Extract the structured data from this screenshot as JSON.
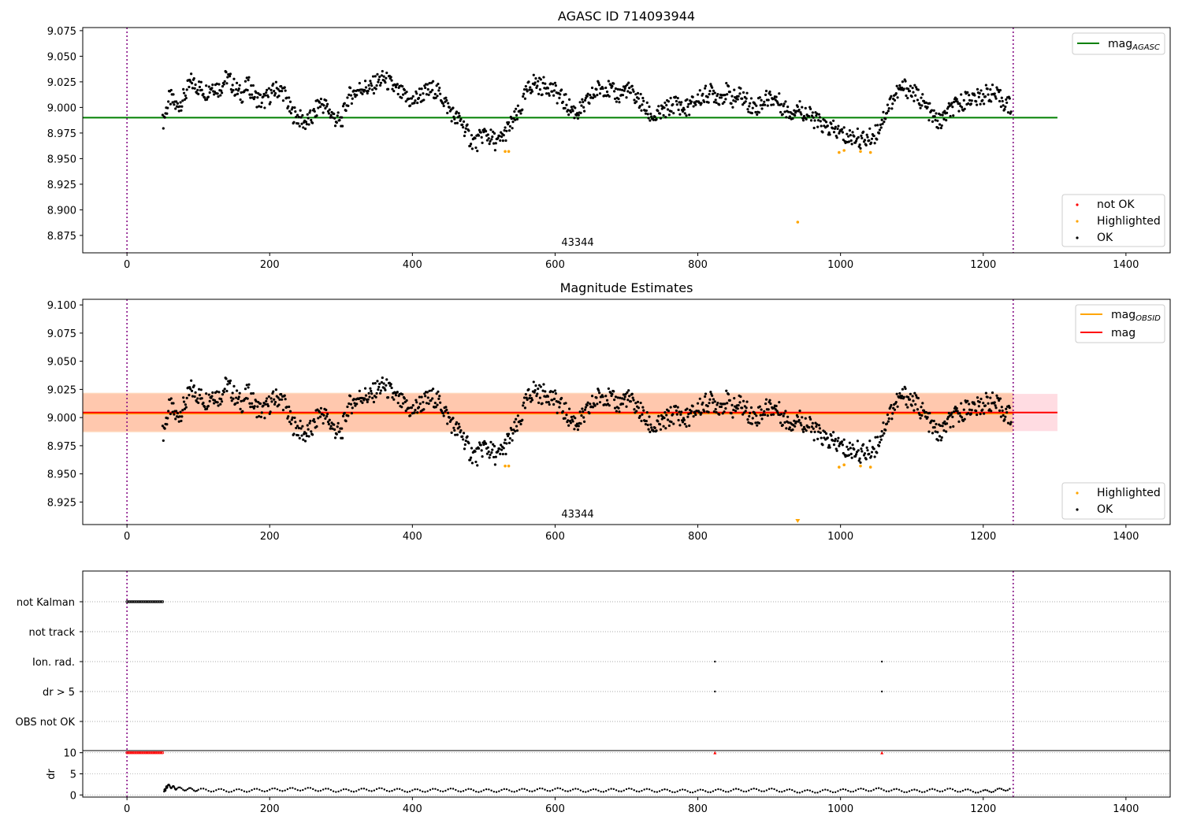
{
  "chart_data": [
    {
      "type": "scatter",
      "title": "AGASC ID 714093944",
      "annotation": "43344",
      "xlim": [
        -62,
        1462
      ],
      "ylim": [
        8.858,
        9.078
      ],
      "xticks": [
        "0",
        "200",
        "400",
        "600",
        "800",
        "1000",
        "1200",
        "1400"
      ],
      "yticks": [
        "8.875",
        "8.900",
        "8.925",
        "8.950",
        "8.975",
        "9.000",
        "9.025",
        "9.050",
        "9.075"
      ],
      "vlines": [
        0,
        1242
      ],
      "hline": {
        "name": "mag_AGASC",
        "y": 8.99,
        "x": [
          -62,
          1304
        ],
        "color": "#008000"
      },
      "legend_upper": [
        {
          "label": "mag",
          "subscript": "AGASC",
          "color": "#008000"
        }
      ],
      "legend_lower": [
        {
          "label": "not OK",
          "color": "#ff0000"
        },
        {
          "label": "Highlighted",
          "color": "#ffa500"
        },
        {
          "label": "OK",
          "color": "#000000"
        }
      ],
      "series": [
        {
          "name": "OK",
          "color": "#000000",
          "x": [
            50,
            60,
            70,
            80,
            90,
            100,
            110,
            120,
            130,
            140,
            150,
            160,
            170,
            180,
            190,
            200,
            210,
            220,
            230,
            240,
            250,
            260,
            270,
            280,
            290,
            300,
            310,
            320,
            330,
            340,
            350,
            360,
            370,
            380,
            390,
            400,
            410,
            420,
            430,
            440,
            450,
            460,
            470,
            480,
            490,
            500,
            510,
            520,
            530,
            540,
            550,
            560,
            570,
            580,
            590,
            600,
            610,
            620,
            630,
            640,
            650,
            660,
            670,
            680,
            690,
            700,
            710,
            720,
            730,
            740,
            750,
            760,
            770,
            780,
            790,
            800,
            810,
            820,
            830,
            840,
            850,
            860,
            870,
            880,
            890,
            900,
            910,
            920,
            930,
            940,
            950,
            960,
            970,
            980,
            990,
            1000,
            1010,
            1020,
            1030,
            1040,
            1050,
            1060,
            1070,
            1080,
            1090,
            1100,
            1110,
            1120,
            1130,
            1140,
            1150,
            1160,
            1170,
            1180,
            1190,
            1200,
            1210,
            1220,
            1230,
            1240
          ],
          "y": [
            8.985,
            9.01,
            9.0,
            9.01,
            9.025,
            9.02,
            9.015,
            9.022,
            9.018,
            9.03,
            9.02,
            9.012,
            9.022,
            9.01,
            9.005,
            9.012,
            9.018,
            9.015,
            8.995,
            8.99,
            8.985,
            8.99,
            9.005,
            9.0,
            8.99,
            8.985,
            9.01,
            9.015,
            9.02,
            9.018,
            9.025,
            9.028,
            9.022,
            9.015,
            9.01,
            9.005,
            9.012,
            9.015,
            9.018,
            9.012,
            9.0,
            8.99,
            8.985,
            8.97,
            8.965,
            8.975,
            8.97,
            8.965,
            8.975,
            8.985,
            8.995,
            9.015,
            9.025,
            9.02,
            9.022,
            9.015,
            9.008,
            9.0,
            8.995,
            9.0,
            9.01,
            9.018,
            9.02,
            9.015,
            9.012,
            9.018,
            9.012,
            9.005,
            8.995,
            8.99,
            8.995,
            9.0,
            9.005,
            8.998,
            9.002,
            9.008,
            9.012,
            9.015,
            9.01,
            9.015,
            9.008,
            9.012,
            9.005,
            9.0,
            9.005,
            9.01,
            9.008,
            9.0,
            8.995,
            9.0,
            8.995,
            8.99,
            8.985,
            8.98,
            8.978,
            8.975,
            8.97,
            8.972,
            8.968,
            8.97,
            8.975,
            8.99,
            9.005,
            9.015,
            9.02,
            9.015,
            9.01,
            9.0,
            8.99,
            8.985,
            8.995,
            9.0,
            9.005,
            9.01,
            9.008,
            9.012,
            9.015,
            9.01,
            9.005,
            9.0
          ]
        },
        {
          "name": "Highlighted",
          "color": "#ffa500",
          "x": [
            530,
            535,
            940,
            998,
            1005,
            1028,
            1042
          ],
          "y": [
            8.957,
            8.957,
            8.888,
            8.956,
            8.958,
            8.957,
            8.956
          ]
        }
      ]
    },
    {
      "type": "scatter",
      "title": "Magnitude Estimates",
      "annotation": "43344",
      "xlim": [
        -62,
        1462
      ],
      "ylim": [
        8.905,
        9.105
      ],
      "xticks": [
        "0",
        "200",
        "400",
        "600",
        "800",
        "1000",
        "1200",
        "1400"
      ],
      "yticks": [
        "8.925",
        "8.950",
        "8.975",
        "9.000",
        "9.025",
        "9.050",
        "9.075",
        "9.100"
      ],
      "vlines": [
        0,
        1242
      ],
      "lines": [
        {
          "name": "mag_OBSID",
          "y": 9.0035,
          "x": [
            -62,
            1242
          ],
          "color": "#ffa500"
        },
        {
          "name": "mag",
          "y": 9.0045,
          "x": [
            -62,
            1304
          ],
          "color": "#ff0000"
        }
      ],
      "bands": [
        {
          "name": "mag band",
          "y": [
            8.988,
            9.021
          ],
          "x": [
            -62,
            1304
          ],
          "color": "#ffc0cb"
        },
        {
          "name": "mag_OBSID band",
          "y": [
            8.987,
            9.022
          ],
          "x": [
            -62,
            1242
          ],
          "color": "#ffb37a"
        }
      ],
      "legend_upper": [
        {
          "label": "mag",
          "subscript": "OBSID",
          "color": "#ffa500"
        },
        {
          "label": "mag",
          "subscript": "",
          "color": "#ff0000"
        }
      ],
      "legend_lower": [
        {
          "label": "Highlighted",
          "color": "#ffa500"
        },
        {
          "label": "OK",
          "color": "#000000"
        }
      ],
      "series": [
        {
          "name": "OK",
          "color": "#000000",
          "x": [
            50,
            60,
            70,
            80,
            90,
            100,
            110,
            120,
            130,
            140,
            150,
            160,
            170,
            180,
            190,
            200,
            210,
            220,
            230,
            240,
            250,
            260,
            270,
            280,
            290,
            300,
            310,
            320,
            330,
            340,
            350,
            360,
            370,
            380,
            390,
            400,
            410,
            420,
            430,
            440,
            450,
            460,
            470,
            480,
            490,
            500,
            510,
            520,
            530,
            540,
            550,
            560,
            570,
            580,
            590,
            600,
            610,
            620,
            630,
            640,
            650,
            660,
            670,
            680,
            690,
            700,
            710,
            720,
            730,
            740,
            750,
            760,
            770,
            780,
            790,
            800,
            810,
            820,
            830,
            840,
            850,
            860,
            870,
            880,
            890,
            900,
            910,
            920,
            930,
            940,
            950,
            960,
            970,
            980,
            990,
            1000,
            1010,
            1020,
            1030,
            1040,
            1050,
            1060,
            1070,
            1080,
            1090,
            1100,
            1110,
            1120,
            1130,
            1140,
            1150,
            1160,
            1170,
            1180,
            1190,
            1200,
            1210,
            1220,
            1230,
            1240
          ],
          "y": [
            8.985,
            9.01,
            9.0,
            9.01,
            9.025,
            9.02,
            9.015,
            9.022,
            9.018,
            9.03,
            9.02,
            9.012,
            9.022,
            9.01,
            9.005,
            9.012,
            9.018,
            9.015,
            8.995,
            8.99,
            8.985,
            8.99,
            9.005,
            9.0,
            8.99,
            8.985,
            9.01,
            9.015,
            9.02,
            9.018,
            9.025,
            9.028,
            9.022,
            9.015,
            9.01,
            9.005,
            9.012,
            9.015,
            9.018,
            9.012,
            9.0,
            8.99,
            8.985,
            8.97,
            8.965,
            8.975,
            8.97,
            8.965,
            8.975,
            8.985,
            8.995,
            9.015,
            9.025,
            9.02,
            9.022,
            9.015,
            9.008,
            9.0,
            8.995,
            9.0,
            9.01,
            9.018,
            9.02,
            9.015,
            9.012,
            9.018,
            9.012,
            9.005,
            8.995,
            8.99,
            8.995,
            9.0,
            9.005,
            8.998,
            9.002,
            9.008,
            9.012,
            9.015,
            9.01,
            9.015,
            9.008,
            9.012,
            9.005,
            9.0,
            9.005,
            9.01,
            9.008,
            9.0,
            8.995,
            9.0,
            8.995,
            8.99,
            8.985,
            8.98,
            8.978,
            8.975,
            8.97,
            8.972,
            8.968,
            8.97,
            8.975,
            8.99,
            9.005,
            9.015,
            9.02,
            9.015,
            9.01,
            9.0,
            8.99,
            8.985,
            8.995,
            9.0,
            9.005,
            9.01,
            9.008,
            9.012,
            9.015,
            9.01,
            9.005,
            9.0
          ]
        },
        {
          "name": "Highlighted",
          "color": "#ffa500",
          "x": [
            530,
            535,
            998,
            1005,
            1028,
            1042
          ],
          "y": [
            8.957,
            8.957,
            8.956,
            8.958,
            8.957,
            8.956
          ]
        }
      ],
      "offscale_markers": [
        {
          "x": 940,
          "color": "#ffa500",
          "symbol": "triangle-down"
        }
      ]
    },
    {
      "type": "scatter",
      "xlim": [
        -62,
        1462
      ],
      "xticks": [
        "0",
        "200",
        "400",
        "600",
        "800",
        "1000",
        "1200",
        "1400"
      ],
      "vlines": [
        0,
        1242
      ],
      "flag_rows": [
        "not Kalman",
        "not track",
        "Ion. rad.",
        "dr > 5",
        "OBS not OK"
      ],
      "flags": [
        {
          "row": "not Kalman",
          "x_range": [
            0,
            50
          ]
        },
        {
          "row": "Ion. rad.",
          "x": [
            824,
            1058
          ]
        },
        {
          "row": "dr > 5",
          "x": [
            824,
            1058
          ]
        }
      ],
      "dr_panel": {
        "ylabel": "dr",
        "ylim": [
          -0.5,
          10.5
        ],
        "yticks": [
          "0",
          "5",
          "10"
        ],
        "clipped_color": "#ff0000",
        "clipped": [
          {
            "x_range": [
              0,
              50
            ],
            "y": 10
          },
          {
            "x": 824,
            "y": 10
          },
          {
            "x": 1058,
            "y": 10
          }
        ],
        "x": [
          52,
          57,
          70,
          100,
          150,
          200,
          250,
          300,
          350,
          400,
          450,
          500,
          550,
          600,
          650,
          700,
          750,
          800,
          850,
          900,
          950,
          1000,
          1050,
          1100,
          1150,
          1200,
          1240
        ],
        "values": [
          0.8,
          2.2,
          1.5,
          1.2,
          1.0,
          1.2,
          1.4,
          1.0,
          1.3,
          1.0,
          1.2,
          1.0,
          1.1,
          1.3,
          1.0,
          1.2,
          1.0,
          0.9,
          1.1,
          1.2,
          0.8,
          1.0,
          1.3,
          0.9,
          1.2,
          0.8,
          1.5
        ]
      }
    }
  ]
}
